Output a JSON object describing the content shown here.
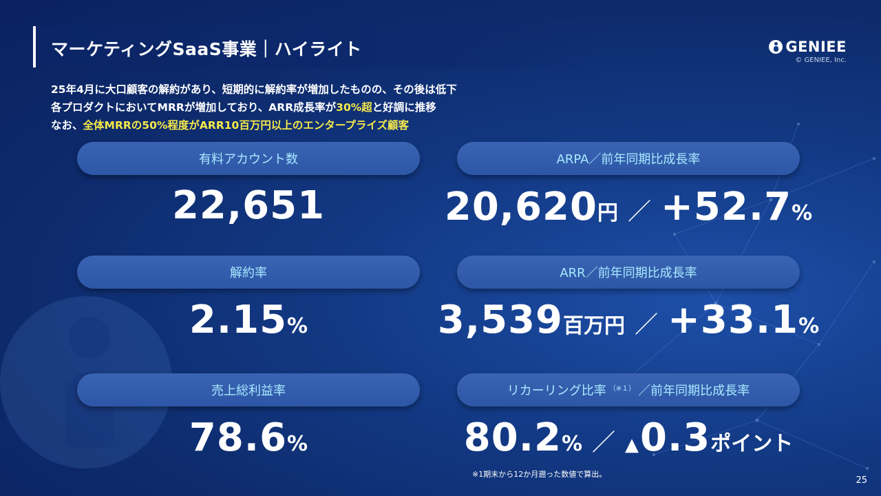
{
  "header": {
    "title": "マーケティングSaaS事業｜ハイライト",
    "brand": "GENIEE",
    "copyright": "© GENIEE, Inc."
  },
  "summary": {
    "line1": "25年4月に大口顧客の解約があり、短期的に解約率が増加したものの、その後は低下",
    "line2_a": "各プロダクトにおいてMRRが増加しており、ARR成長率が",
    "line2_hl": "30%超",
    "line2_b": "と好調に推移",
    "line3_a": "なお、",
    "line3_hl": "全体MRRの50%程度がARR10百万円以上のエンタープライズ顧客"
  },
  "metrics": {
    "accounts": {
      "label": "有料アカウント数",
      "value": "22,651"
    },
    "arpa": {
      "label": "ARPA／前年同期比成長率",
      "value": "20,620",
      "unit": "円",
      "sep": "／",
      "growth": "+52.7",
      "growth_unit": "%"
    },
    "churn": {
      "label": "解約率",
      "value": "2.15",
      "unit": "%"
    },
    "arr": {
      "label": "ARR／前年同期比成長率",
      "value": "3,539",
      "unit": "百万円",
      "sep": "／",
      "growth": "+33.1",
      "growth_unit": "%"
    },
    "gross_margin": {
      "label": "売上総利益率",
      "value": "78.6",
      "unit": "%"
    },
    "recurring": {
      "label_a": "リカーリング比率",
      "label_note": "（※１）",
      "label_b": "／前年同期比成長率",
      "value": "80.2",
      "unit": "%",
      "sep": "／",
      "triangle": "▲",
      "change": "0.3",
      "change_unit": "ポイント"
    }
  },
  "footnote": "※1期末から12か月遡った数値で算出。",
  "page_number": "25"
}
